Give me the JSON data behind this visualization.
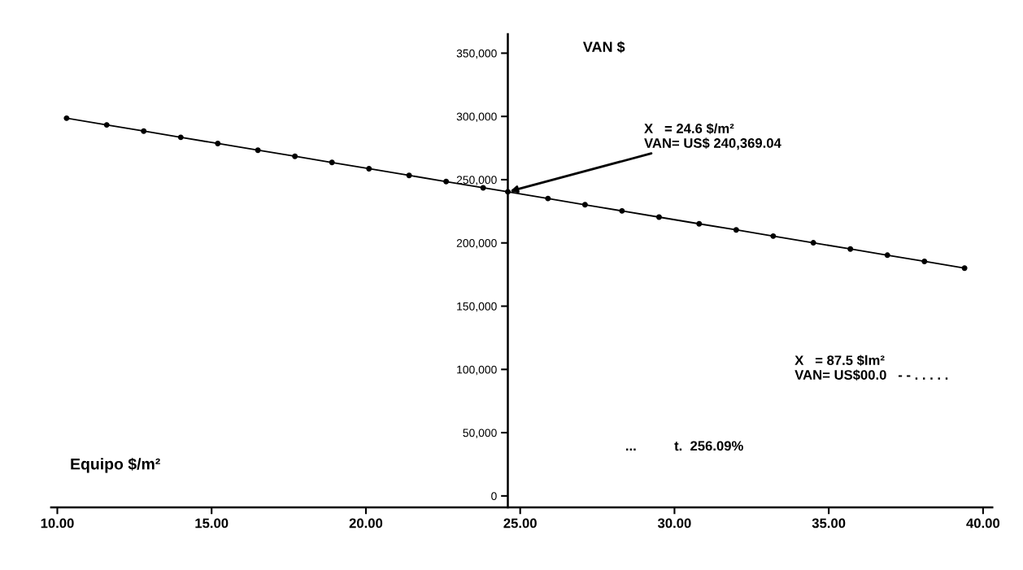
{
  "chart_data": {
    "type": "line",
    "x": [
      10.3,
      11.6,
      12.8,
      14.0,
      15.2,
      16.5,
      17.7,
      18.9,
      20.1,
      21.4,
      22.6,
      23.8,
      24.6,
      25.9,
      27.1,
      28.3,
      29.5,
      30.8,
      32.0,
      33.2,
      34.5,
      35.7,
      36.9,
      38.1,
      39.4
    ],
    "series": [
      {
        "color": "#000000",
        "values": [
          298600,
          293300,
          288400,
          283500,
          278600,
          273300,
          268500,
          263600,
          258700,
          253400,
          248500,
          243600,
          240400,
          235100,
          230200,
          225300,
          220400,
          215100,
          210300,
          205400,
          200100,
          195200,
          190300,
          185400,
          180100
        ]
      }
    ],
    "xlabel": "Equipo $/m²",
    "ylabel": "VAN $",
    "xlim": [
      9.8,
      40.3
    ],
    "ylim": [
      -9000,
      365000
    ],
    "xticks": [
      {
        "value": 10,
        "label": "10.00"
      },
      {
        "value": 15,
        "label": "15.00"
      },
      {
        "value": 20,
        "label": "20.00"
      },
      {
        "value": 25,
        "label": "25.00"
      },
      {
        "value": 30,
        "label": "30.00"
      },
      {
        "value": 35,
        "label": "35.00"
      },
      {
        "value": 40,
        "label": "40.00"
      }
    ],
    "yticks": [
      0,
      {
        "value": 50000,
        "label": "50,000"
      },
      {
        "value": 100000,
        "label": "100,000"
      },
      {
        "value": 150000,
        "label": "150,000"
      },
      {
        "value": 200000,
        "label": "200,000"
      },
      {
        "value": 250000,
        "label": "250,000"
      },
      {
        "value": 300000,
        "label": "300,000"
      },
      {
        "value": 350000,
        "label": "350,000"
      }
    ],
    "annotations": [
      {
        "text": "X   = 24.6 $/m²\nVAN= US$ 240,369.04",
        "x": 24.6,
        "y": 240369.04
      },
      "X   = 87.5 $lm²\nVAN= US$00.0   - - . . . . .",
      "...          t.  256.09%"
    ],
    "marker": "circle",
    "line_style": "solid",
    "grid": false,
    "legend": false
  }
}
